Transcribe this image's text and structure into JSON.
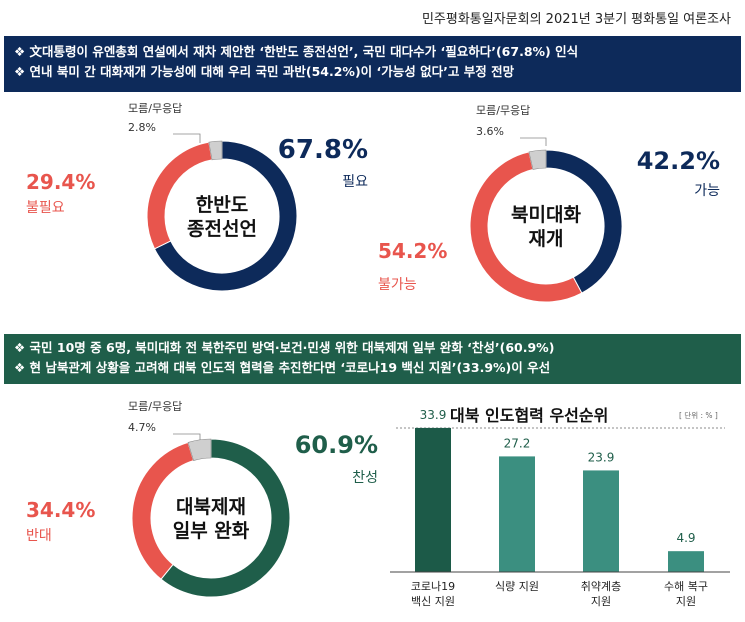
{
  "header": {
    "title": "민주평화통일자문회의 2021년 3분기 평화통일 여론조사"
  },
  "banner1": {
    "line1": "❖ 文대통령이 유엔총회 연설에서 재차 제안한 ‘한반도 종전선언’, 국민 대다수가 ‘필요하다’(67.8%) 인식",
    "line2": "❖ 연내 북미 간 대화재개 가능성에 대해 우리 국민 과반(54.2%)이 ‘가능성 없다’고 부정 전망"
  },
  "banner2": {
    "line1": "❖ 국민 10명 중 6명, 북미대화 전 북한주민 방역·보건·민생 위한 대북제재 일부 완화 ‘찬성’(60.9%)",
    "line2": "❖ 현 남북관계 상황을 고려해 대북 인도적 협력을 추진한다면 ‘코로나19 백신 지원’(33.9%)이 우선"
  },
  "colors": {
    "navy": "#0d2a5a",
    "red": "#e8554d",
    "gray": "#bfbfbf",
    "green": "#1f5e4a",
    "teal": "#3b8f80",
    "darkgreen": "#1c5a48"
  },
  "chart_data": [
    {
      "type": "pie",
      "title": "한반도\n종전선언",
      "slices": [
        {
          "label": "필요",
          "value": 67.8,
          "color": "navy"
        },
        {
          "label": "불필요",
          "value": 29.4,
          "color": "red"
        },
        {
          "label": "모름/무응답",
          "value": 2.8,
          "color": "gray"
        }
      ],
      "value_text": [
        "67.8%",
        "29.4%",
        "2.8%"
      ]
    },
    {
      "type": "pie",
      "title": "북미대화\n재개",
      "slices": [
        {
          "label": "가능",
          "value": 42.2,
          "color": "navy"
        },
        {
          "label": "불가능",
          "value": 54.2,
          "color": "red"
        },
        {
          "label": "모름/무응답",
          "value": 3.6,
          "color": "gray"
        }
      ],
      "value_text": [
        "42.2%",
        "54.2%",
        "3.6%"
      ]
    },
    {
      "type": "pie",
      "title": "대북제재\n일부 완화",
      "slices": [
        {
          "label": "찬성",
          "value": 60.9,
          "color": "green"
        },
        {
          "label": "반대",
          "value": 34.4,
          "color": "red"
        },
        {
          "label": "모름/무응답",
          "value": 4.7,
          "color": "gray"
        }
      ],
      "value_text": [
        "60.9%",
        "34.4%",
        "4.7%"
      ]
    },
    {
      "type": "bar",
      "title": "대북 인도협력 우선순위",
      "unit": "[ 단위 : % ]",
      "categories": [
        "코로나19\n백신 지원",
        "식량 지원",
        "취약계층\n지원",
        "수해 복구\n지원"
      ],
      "values": [
        33.9,
        27.2,
        23.9,
        4.9
      ],
      "value_labels": [
        "33.9",
        "27.2",
        "23.9",
        "4.9"
      ],
      "bar_colors": [
        "darkgreen",
        "teal",
        "teal",
        "teal"
      ],
      "ylim": [
        0,
        40
      ]
    }
  ]
}
